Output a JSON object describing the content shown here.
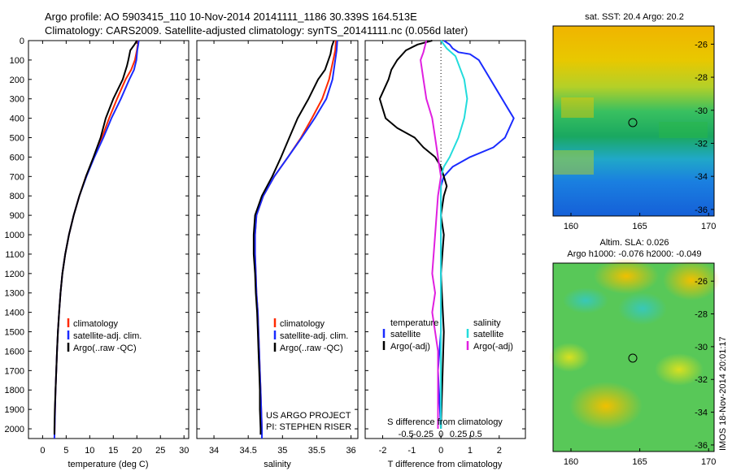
{
  "header": {
    "line1": "Argo profile: AO 5903415_110 10-Nov-2014 20141111_1186 30.339S 164.513E",
    "line2": "Climatology: CARS2009. Satellite-adjusted climatology: synTS_20141111.nc (0.056d later)"
  },
  "colors": {
    "climatology": "#ff2a00",
    "satellite": "#1a2bff",
    "argo": "#000000",
    "sat_salinity": "#23dcdc",
    "argo_salinity": "#e020e0"
  },
  "depth_ticks": [
    "0",
    "100",
    "200",
    "300",
    "400",
    "500",
    "600",
    "700",
    "800",
    "900",
    "1000",
    "1100",
    "1200",
    "1300",
    "1400",
    "1500",
    "1600",
    "1700",
    "1800",
    "1900",
    "2000"
  ],
  "chart_data": [
    {
      "type": "line",
      "xlabel": "temperature (deg C)",
      "xticks": [
        "0",
        "5",
        "10",
        "15",
        "20",
        "25",
        "30"
      ],
      "xlim": [
        -3,
        31
      ],
      "ylim": [
        0,
        2050
      ],
      "y_inverted": true,
      "series": [
        {
          "name": "climatology",
          "color_key": "climatology",
          "points": [
            [
              20.3,
              0
            ],
            [
              20.2,
              20
            ],
            [
              20.0,
              50
            ],
            [
              19.6,
              100
            ],
            [
              18.8,
              150
            ],
            [
              17.6,
              200
            ],
            [
              15.8,
              300
            ],
            [
              14.1,
              400
            ],
            [
              12.6,
              500
            ],
            [
              10.9,
              600
            ],
            [
              9.2,
              700
            ],
            [
              7.8,
              800
            ],
            [
              6.6,
              900
            ],
            [
              5.6,
              1000
            ],
            [
              4.8,
              1100
            ],
            [
              4.2,
              1200
            ],
            [
              3.8,
              1300
            ],
            [
              3.5,
              1400
            ],
            [
              3.25,
              1500
            ],
            [
              3.05,
              1600
            ],
            [
              2.9,
              1700
            ],
            [
              2.75,
              1800
            ],
            [
              2.65,
              1900
            ],
            [
              2.55,
              2000
            ],
            [
              2.5,
              2050
            ]
          ]
        },
        {
          "name": "satellite-adj. clim.",
          "color_key": "satellite",
          "points": [
            [
              20.4,
              0
            ],
            [
              20.3,
              20
            ],
            [
              20.1,
              50
            ],
            [
              19.9,
              100
            ],
            [
              19.4,
              150
            ],
            [
              18.4,
              200
            ],
            [
              16.6,
              300
            ],
            [
              14.6,
              400
            ],
            [
              12.9,
              500
            ],
            [
              11.0,
              600
            ],
            [
              9.3,
              700
            ],
            [
              7.8,
              800
            ],
            [
              6.6,
              900
            ],
            [
              5.6,
              1000
            ],
            [
              4.8,
              1100
            ],
            [
              4.2,
              1200
            ],
            [
              3.8,
              1300
            ],
            [
              3.5,
              1400
            ],
            [
              3.25,
              1500
            ],
            [
              3.05,
              1600
            ],
            [
              2.9,
              1700
            ],
            [
              2.75,
              1800
            ],
            [
              2.65,
              1900
            ],
            [
              2.55,
              2000
            ],
            [
              2.5,
              2050
            ]
          ]
        },
        {
          "name": "Argo(..raw -QC)",
          "color_key": "argo",
          "points": [
            [
              20.0,
              0
            ],
            [
              19.5,
              20
            ],
            [
              18.6,
              50
            ],
            [
              18.2,
              100
            ],
            [
              17.9,
              130
            ],
            [
              17.0,
              200
            ],
            [
              15.0,
              300
            ],
            [
              13.4,
              400
            ],
            [
              12.3,
              500
            ],
            [
              10.8,
              600
            ],
            [
              9.2,
              700
            ],
            [
              7.8,
              800
            ],
            [
              6.6,
              900
            ],
            [
              5.6,
              1000
            ],
            [
              4.8,
              1100
            ],
            [
              4.2,
              1200
            ],
            [
              3.8,
              1300
            ],
            [
              3.5,
              1400
            ],
            [
              3.25,
              1500
            ],
            [
              3.05,
              1600
            ],
            [
              2.9,
              1700
            ],
            [
              2.75,
              1800
            ],
            [
              2.6,
              1900
            ],
            [
              2.5,
              2000
            ],
            [
              2.5,
              2030
            ]
          ]
        }
      ],
      "legend": [
        "climatology",
        "satellite-adj. clim.",
        "Argo(..raw -QC)"
      ]
    },
    {
      "type": "line",
      "xlabel": "salinity",
      "xticks": [
        "34",
        "34.5",
        "35",
        "35.5",
        "36"
      ],
      "xlim": [
        33.75,
        36.1
      ],
      "ylim": [
        0,
        2050
      ],
      "y_inverted": true,
      "series": [
        {
          "name": "climatology",
          "color_key": "climatology",
          "points": [
            [
              35.78,
              0
            ],
            [
              35.77,
              50
            ],
            [
              35.74,
              100
            ],
            [
              35.68,
              200
            ],
            [
              35.58,
              300
            ],
            [
              35.43,
              400
            ],
            [
              35.27,
              500
            ],
            [
              35.08,
              600
            ],
            [
              34.88,
              700
            ],
            [
              34.72,
              800
            ],
            [
              34.62,
              900
            ],
            [
              34.6,
              1000
            ],
            [
              34.6,
              1100
            ],
            [
              34.61,
              1200
            ],
            [
              34.62,
              1300
            ],
            [
              34.64,
              1400
            ],
            [
              34.65,
              1500
            ],
            [
              34.66,
              1600
            ],
            [
              34.67,
              1700
            ],
            [
              34.68,
              1800
            ],
            [
              34.69,
              1900
            ],
            [
              34.7,
              2000
            ],
            [
              34.7,
              2050
            ]
          ]
        },
        {
          "name": "satellite-adj. clim.",
          "color_key": "satellite",
          "points": [
            [
              35.8,
              0
            ],
            [
              35.79,
              50
            ],
            [
              35.77,
              100
            ],
            [
              35.73,
              200
            ],
            [
              35.64,
              300
            ],
            [
              35.47,
              400
            ],
            [
              35.28,
              500
            ],
            [
              35.08,
              600
            ],
            [
              34.88,
              700
            ],
            [
              34.72,
              800
            ],
            [
              34.62,
              900
            ],
            [
              34.6,
              1000
            ],
            [
              34.6,
              1100
            ],
            [
              34.61,
              1200
            ],
            [
              34.62,
              1300
            ],
            [
              34.64,
              1400
            ],
            [
              34.65,
              1500
            ],
            [
              34.66,
              1600
            ],
            [
              34.67,
              1700
            ],
            [
              34.68,
              1800
            ],
            [
              34.69,
              1900
            ],
            [
              34.7,
              2000
            ],
            [
              34.7,
              2050
            ]
          ]
        },
        {
          "name": "Argo(..raw -QC)",
          "color_key": "argo",
          "points": [
            [
              35.75,
              0
            ],
            [
              35.72,
              30
            ],
            [
              35.7,
              70
            ],
            [
              35.67,
              100
            ],
            [
              35.62,
              150
            ],
            [
              35.52,
              200
            ],
            [
              35.38,
              300
            ],
            [
              35.22,
              400
            ],
            [
              35.1,
              500
            ],
            [
              34.98,
              600
            ],
            [
              34.85,
              700
            ],
            [
              34.7,
              800
            ],
            [
              34.6,
              900
            ],
            [
              34.58,
              1000
            ],
            [
              34.58,
              1100
            ],
            [
              34.6,
              1200
            ],
            [
              34.61,
              1300
            ],
            [
              34.63,
              1400
            ],
            [
              34.64,
              1500
            ],
            [
              34.65,
              1600
            ],
            [
              34.66,
              1700
            ],
            [
              34.67,
              1800
            ],
            [
              34.67,
              1900
            ],
            [
              34.68,
              2000
            ],
            [
              34.68,
              2030
            ]
          ]
        }
      ],
      "legend": [
        "climatology",
        "satellite-adj. clim.",
        "Argo(..raw -QC)"
      ],
      "annotation": [
        "US ARGO PROJECT",
        "PI: STEPHEN RISER"
      ]
    },
    {
      "type": "line",
      "xlabel": "T difference from climatology",
      "xticks": [
        "-2",
        "-1",
        "0",
        "1",
        "2"
      ],
      "xlim": [
        -2.6,
        2.9
      ],
      "second_xlabel": "S difference from climatology",
      "second_xticks": [
        "-0.5",
        "-0.25",
        "0",
        "0.25",
        "0.5"
      ],
      "ylim": [
        0,
        2050
      ],
      "y_inverted": true,
      "series": [
        {
          "name": "satellite",
          "group": "temperature",
          "color_key": "satellite",
          "points": [
            [
              0.1,
              0
            ],
            [
              0.3,
              20
            ],
            [
              0.4,
              40
            ],
            [
              0.6,
              60
            ],
            [
              1.0,
              70
            ],
            [
              1.3,
              100
            ],
            [
              1.5,
              150
            ],
            [
              1.7,
              200
            ],
            [
              1.9,
              250
            ],
            [
              2.3,
              350
            ],
            [
              2.5,
              400
            ],
            [
              2.2,
              500
            ],
            [
              1.8,
              550
            ],
            [
              1.0,
              600
            ],
            [
              0.4,
              650
            ],
            [
              0.1,
              700
            ],
            [
              0.0,
              750
            ],
            [
              0.0,
              1000
            ],
            [
              0.0,
              1500
            ],
            [
              -0.1,
              1700
            ],
            [
              0.0,
              2000
            ]
          ]
        },
        {
          "name": "Argo(-adj)",
          "group": "temperature",
          "color_key": "argo",
          "points": [
            [
              -0.3,
              0
            ],
            [
              -0.8,
              20
            ],
            [
              -1.2,
              50
            ],
            [
              -1.5,
              100
            ],
            [
              -1.7,
              150
            ],
            [
              -1.8,
              200
            ],
            [
              -2.1,
              300
            ],
            [
              -2.0,
              350
            ],
            [
              -1.9,
              400
            ],
            [
              -1.5,
              450
            ],
            [
              -0.9,
              500
            ],
            [
              -0.6,
              550
            ],
            [
              -0.2,
              600
            ],
            [
              0.0,
              650
            ],
            [
              0.1,
              700
            ],
            [
              0.2,
              750
            ],
            [
              0.1,
              800
            ],
            [
              0.0,
              900
            ],
            [
              0.1,
              1000
            ],
            [
              0.0,
              1200
            ],
            [
              0.1,
              1500
            ],
            [
              0.0,
              2000
            ]
          ]
        },
        {
          "name": "satellite",
          "group": "salinity",
          "color_key": "sat_salinity",
          "points": [
            [
              0.0,
              0
            ],
            [
              0.2,
              40
            ],
            [
              0.5,
              80
            ],
            [
              0.6,
              120
            ],
            [
              0.8,
              200
            ],
            [
              0.9,
              300
            ],
            [
              0.8,
              400
            ],
            [
              0.6,
              500
            ],
            [
              0.3,
              600
            ],
            [
              0.1,
              650
            ],
            [
              0.0,
              700
            ],
            [
              0.0,
              1000
            ],
            [
              0.0,
              1500
            ],
            [
              0.0,
              2000
            ]
          ]
        },
        {
          "name": "Argo(-adj)",
          "group": "salinity",
          "color_key": "argo_salinity",
          "points": [
            [
              -0.5,
              0
            ],
            [
              -0.6,
              60
            ],
            [
              -0.7,
              100
            ],
            [
              -0.6,
              200
            ],
            [
              -0.5,
              300
            ],
            [
              -0.3,
              400
            ],
            [
              -0.2,
              500
            ],
            [
              -0.1,
              600
            ],
            [
              0.0,
              700
            ],
            [
              -0.1,
              800
            ],
            [
              -0.2,
              1000
            ],
            [
              -0.3,
              1200
            ],
            [
              -0.2,
              1300
            ],
            [
              -0.3,
              1400
            ],
            [
              -0.2,
              1500
            ],
            [
              -0.1,
              1600
            ],
            [
              -0.1,
              2000
            ]
          ]
        }
      ],
      "legend_groups": [
        {
          "title": "temperature",
          "items": [
            "satellite",
            "Argo(-adj)"
          ]
        },
        {
          "title": "salinity",
          "items": [
            "satellite",
            "Argo(-adj)"
          ]
        }
      ]
    }
  ],
  "maps": [
    {
      "title": "sat. SST: 20.4  Argo: 20.2",
      "xticks": [
        "160",
        "165",
        "170"
      ],
      "yticks": [
        "-26",
        "-28",
        "-30",
        "-32",
        "-34",
        "-36"
      ]
    },
    {
      "title1": "Altim. SLA: 0.026",
      "title2": "Argo h1000: -0.076 h2000: -0.049",
      "xticks": [
        "160",
        "165",
        "170"
      ],
      "yticks": [
        "-26",
        "-28",
        "-30",
        "-32",
        "-34",
        "-36"
      ]
    }
  ],
  "footer_stamp": "IMOS 18-Nov-2014 20:01:17"
}
